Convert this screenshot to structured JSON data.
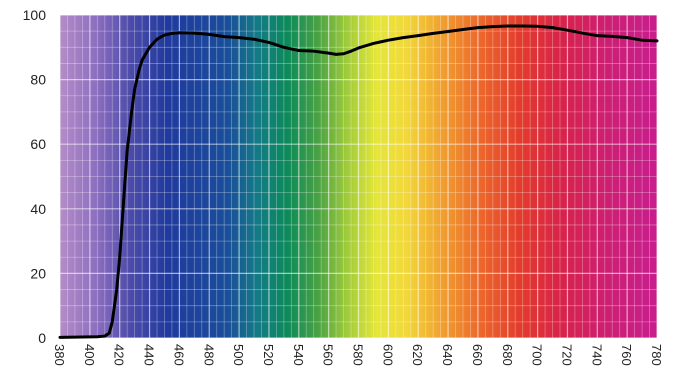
{
  "chart_data": {
    "type": "line",
    "title": "",
    "xlabel": "",
    "ylabel": "",
    "xlim": [
      380,
      780
    ],
    "ylim": [
      0,
      100
    ],
    "grid": true,
    "background": "visible-spectrum gradient (violet to magenta)",
    "line_color": "#000000",
    "yticks": [
      "0",
      "20",
      "40",
      "60",
      "80",
      "100"
    ],
    "xticks": [
      "380",
      "400",
      "420",
      "440",
      "460",
      "480",
      "500",
      "520",
      "540",
      "560",
      "580",
      "600",
      "620",
      "640",
      "660",
      "680",
      "700",
      "720",
      "740",
      "760",
      "780"
    ],
    "series": [
      {
        "x": [
          380,
          395,
          405,
          410,
          413,
          415,
          418,
          420,
          423,
          425,
          428,
          430,
          433,
          435,
          440,
          445,
          450,
          455,
          460,
          470,
          480,
          490,
          500,
          510,
          520,
          530,
          540,
          550,
          560,
          565,
          570,
          575,
          580,
          590,
          600,
          610,
          620,
          630,
          640,
          650,
          660,
          670,
          680,
          690,
          700,
          710,
          720,
          730,
          740,
          750,
          760,
          770,
          780
        ],
        "y": [
          0.2,
          0.3,
          0.4,
          0.6,
          1.5,
          5,
          15,
          25,
          45,
          58,
          70,
          77,
          83,
          86,
          90,
          92.5,
          93.8,
          94.3,
          94.5,
          94.4,
          94,
          93.3,
          93,
          92.5,
          91.5,
          90,
          89,
          88.8,
          88.2,
          87.8,
          88,
          88.8,
          89.8,
          91.2,
          92.2,
          93,
          93.6,
          94.3,
          94.9,
          95.5,
          96.1,
          96.4,
          96.6,
          96.6,
          96.5,
          96.1,
          95.3,
          94.4,
          93.6,
          93.4,
          93,
          92.2,
          92
        ]
      }
    ]
  }
}
